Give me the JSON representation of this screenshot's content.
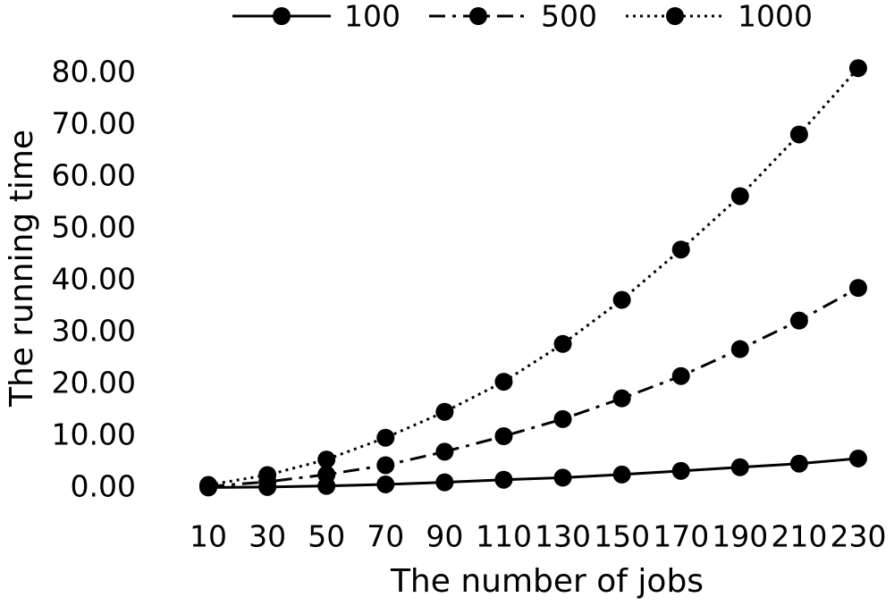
{
  "chart_data": {
    "type": "line",
    "x_label": "The number of jobs",
    "y_label": "The running time",
    "categories": [
      "10",
      "30",
      "50",
      "70",
      "90",
      "110",
      "130",
      "150",
      "170",
      "190",
      "210",
      "230"
    ],
    "series": [
      {
        "name": "100",
        "color": "#000000",
        "line_style": "solid",
        "values": [
          0.1,
          0.2,
          0.4,
          0.7,
          1.1,
          1.6,
          2.0,
          2.6,
          3.3,
          4.0,
          4.7,
          5.7
        ]
      },
      {
        "name": "500",
        "color": "#000000",
        "line_style": "dashdot",
        "values": [
          0.3,
          1.2,
          2.6,
          4.4,
          7.0,
          10.0,
          13.3,
          17.3,
          21.6,
          26.8,
          32.3,
          38.6
        ]
      },
      {
        "name": "1000",
        "color": "#000000",
        "line_style": "dotted",
        "values": [
          0.6,
          2.5,
          5.5,
          9.7,
          14.7,
          20.5,
          27.8,
          36.3,
          46.0,
          56.3,
          68.2,
          81.0
        ]
      }
    ],
    "ylim": [
      0,
      80
    ],
    "yticks": [
      {
        "value": 0,
        "label": "0.00"
      },
      {
        "value": 10,
        "label": "10.00"
      },
      {
        "value": 20,
        "label": "20.00"
      },
      {
        "value": 30,
        "label": "30.00"
      },
      {
        "value": 40,
        "label": "40.00"
      },
      {
        "value": 50,
        "label": "50.00"
      },
      {
        "value": 60,
        "label": "60.00"
      },
      {
        "value": 70,
        "label": "70.00"
      },
      {
        "value": 80,
        "label": "80.00"
      }
    ],
    "grid": false,
    "legend": "top"
  }
}
